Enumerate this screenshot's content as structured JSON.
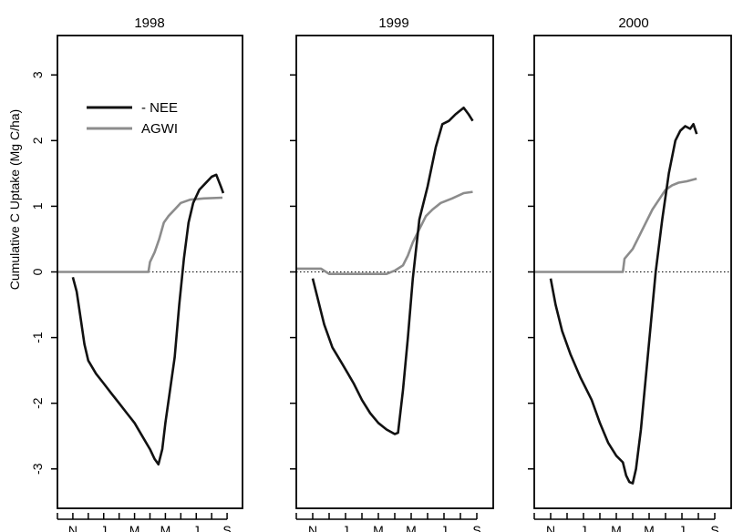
{
  "chart_data": {
    "type": "line",
    "ylabel": "Cumulative C Uptake (Mg C/ha)",
    "ylim": [
      -3.6,
      3.6
    ],
    "y_ticks": [
      -3,
      -2,
      -1,
      0,
      1,
      2,
      3
    ],
    "xlim": [
      0,
      12
    ],
    "x_tick_labels": [
      "N",
      "J",
      "M",
      "M",
      "J",
      "S"
    ],
    "x_tick_positions": [
      1,
      3,
      5,
      7,
      9,
      11
    ],
    "minor_x_ticks": [
      0,
      1,
      2,
      3,
      4,
      5,
      6,
      7,
      8,
      9,
      10,
      11
    ],
    "zero_reference_line": "dotted",
    "legend": {
      "placement": "top-left of first panel",
      "entries": [
        {
          "label": "- NEE",
          "color": "#111111"
        },
        {
          "label": "AGWI",
          "color": "#8c8c8c"
        }
      ]
    },
    "colors": {
      "nee": "#111111",
      "agwi": "#8c8c8c"
    },
    "panels": [
      {
        "title": "1998",
        "series": [
          {
            "name": "- NEE",
            "points": [
              [
                1.0,
                -0.08
              ],
              [
                1.25,
                -0.3
              ],
              [
                1.5,
                -0.7
              ],
              [
                1.75,
                -1.1
              ],
              [
                2.0,
                -1.35
              ],
              [
                2.5,
                -1.55
              ],
              [
                3.0,
                -1.7
              ],
              [
                3.5,
                -1.85
              ],
              [
                4.0,
                -2.0
              ],
              [
                4.5,
                -2.15
              ],
              [
                5.0,
                -2.3
              ],
              [
                5.5,
                -2.5
              ],
              [
                6.0,
                -2.7
              ],
              [
                6.3,
                -2.85
              ],
              [
                6.55,
                -2.93
              ],
              [
                6.8,
                -2.7
              ],
              [
                7.0,
                -2.3
              ],
              [
                7.3,
                -1.8
              ],
              [
                7.6,
                -1.3
              ],
              [
                7.9,
                -0.5
              ],
              [
                8.2,
                0.2
              ],
              [
                8.5,
                0.75
              ],
              [
                8.8,
                1.05
              ],
              [
                9.2,
                1.25
              ],
              [
                9.6,
                1.35
              ],
              [
                10.0,
                1.45
              ],
              [
                10.3,
                1.48
              ],
              [
                10.6,
                1.3
              ],
              [
                10.75,
                1.2
              ]
            ]
          },
          {
            "name": "AGWI",
            "points": [
              [
                0.0,
                0.0
              ],
              [
                5.9,
                0.0
              ],
              [
                6.0,
                0.15
              ],
              [
                6.3,
                0.3
              ],
              [
                6.6,
                0.5
              ],
              [
                6.9,
                0.75
              ],
              [
                7.2,
                0.85
              ],
              [
                7.6,
                0.95
              ],
              [
                8.0,
                1.05
              ],
              [
                8.6,
                1.1
              ],
              [
                9.5,
                1.12
              ],
              [
                10.7,
                1.13
              ]
            ]
          }
        ]
      },
      {
        "title": "1999",
        "series": [
          {
            "name": "- NEE",
            "points": [
              [
                1.0,
                -0.1
              ],
              [
                1.3,
                -0.4
              ],
              [
                1.7,
                -0.8
              ],
              [
                2.2,
                -1.15
              ],
              [
                2.8,
                -1.4
              ],
              [
                3.5,
                -1.7
              ],
              [
                4.0,
                -1.95
              ],
              [
                4.5,
                -2.15
              ],
              [
                5.0,
                -2.3
              ],
              [
                5.5,
                -2.4
              ],
              [
                6.0,
                -2.47
              ],
              [
                6.2,
                -2.45
              ],
              [
                6.5,
                -1.8
              ],
              [
                6.8,
                -1.0
              ],
              [
                7.1,
                -0.1
              ],
              [
                7.5,
                0.8
              ],
              [
                8.0,
                1.3
              ],
              [
                8.5,
                1.9
              ],
              [
                8.9,
                2.25
              ],
              [
                9.3,
                2.3
              ],
              [
                9.7,
                2.4
              ],
              [
                10.2,
                2.5
              ],
              [
                10.5,
                2.4
              ],
              [
                10.75,
                2.3
              ]
            ]
          },
          {
            "name": "AGWI",
            "points": [
              [
                0.0,
                0.05
              ],
              [
                1.5,
                0.05
              ],
              [
                2.0,
                -0.03
              ],
              [
                5.5,
                -0.03
              ],
              [
                6.0,
                0.02
              ],
              [
                6.5,
                0.1
              ],
              [
                6.8,
                0.25
              ],
              [
                7.1,
                0.45
              ],
              [
                7.5,
                0.65
              ],
              [
                7.9,
                0.85
              ],
              [
                8.3,
                0.95
              ],
              [
                8.8,
                1.05
              ],
              [
                9.5,
                1.12
              ],
              [
                10.2,
                1.2
              ],
              [
                10.75,
                1.22
              ]
            ]
          }
        ]
      },
      {
        "title": "2000",
        "series": [
          {
            "name": "- NEE",
            "points": [
              [
                1.0,
                -0.1
              ],
              [
                1.3,
                -0.5
              ],
              [
                1.7,
                -0.9
              ],
              [
                2.2,
                -1.25
              ],
              [
                2.8,
                -1.6
              ],
              [
                3.5,
                -1.95
              ],
              [
                4.0,
                -2.3
              ],
              [
                4.5,
                -2.6
              ],
              [
                5.0,
                -2.8
              ],
              [
                5.4,
                -2.9
              ],
              [
                5.6,
                -3.1
              ],
              [
                5.8,
                -3.2
              ],
              [
                6.0,
                -3.22
              ],
              [
                6.2,
                -3.0
              ],
              [
                6.5,
                -2.4
              ],
              [
                6.8,
                -1.6
              ],
              [
                7.1,
                -0.8
              ],
              [
                7.4,
                0.0
              ],
              [
                7.8,
                0.8
              ],
              [
                8.2,
                1.5
              ],
              [
                8.6,
                2.0
              ],
              [
                8.9,
                2.15
              ],
              [
                9.2,
                2.22
              ],
              [
                9.5,
                2.18
              ],
              [
                9.7,
                2.25
              ],
              [
                9.9,
                2.1
              ]
            ]
          },
          {
            "name": "AGWI",
            "points": [
              [
                0.0,
                0.0
              ],
              [
                5.4,
                0.0
              ],
              [
                5.5,
                0.2
              ],
              [
                6.0,
                0.35
              ],
              [
                6.4,
                0.55
              ],
              [
                6.8,
                0.75
              ],
              [
                7.2,
                0.95
              ],
              [
                7.6,
                1.1
              ],
              [
                8.0,
                1.25
              ],
              [
                8.4,
                1.32
              ],
              [
                8.8,
                1.36
              ],
              [
                9.3,
                1.38
              ],
              [
                9.9,
                1.42
              ]
            ]
          }
        ]
      }
    ]
  }
}
